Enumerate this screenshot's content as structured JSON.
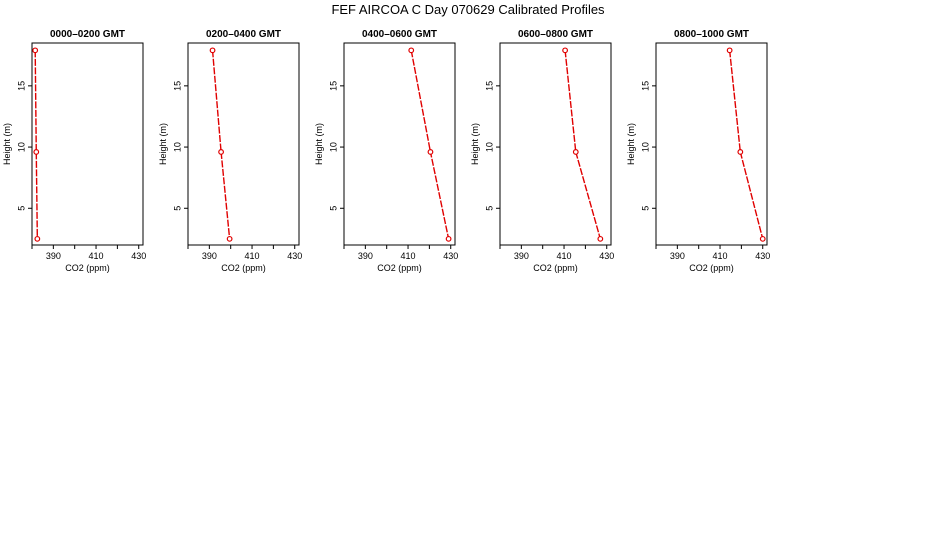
{
  "title": "FEF AIRCOA C  Day 070629  Calibrated Profiles",
  "chart_data": [
    {
      "type": "line",
      "title": "0000–0200 GMT",
      "xlabel": "CO2 (ppm)",
      "ylabel": "Height (m)",
      "xlim": [
        380,
        432
      ],
      "ylim": [
        2,
        18.5
      ],
      "xticks": [
        390,
        410,
        430
      ],
      "yticks": [
        5,
        10,
        15
      ],
      "x": [
        381.5,
        382.0,
        382.5
      ],
      "y": [
        17.9,
        9.6,
        2.5
      ],
      "line_color": "#e00000",
      "grid": false
    },
    {
      "type": "line",
      "title": "0200–0400 GMT",
      "xlabel": "CO2 (ppm)",
      "ylabel": "Height (m)",
      "xlim": [
        380,
        432
      ],
      "ylim": [
        2,
        18.5
      ],
      "xticks": [
        390,
        410,
        430
      ],
      "yticks": [
        5,
        10,
        15
      ],
      "x": [
        391.5,
        395.5,
        399.5
      ],
      "y": [
        17.9,
        9.6,
        2.5
      ],
      "line_color": "#e00000",
      "grid": false
    },
    {
      "type": "line",
      "title": "0400–0600 GMT",
      "xlabel": "CO2 (ppm)",
      "ylabel": "Height (m)",
      "xlim": [
        380,
        432
      ],
      "ylim": [
        2,
        18.5
      ],
      "xticks": [
        390,
        410,
        430
      ],
      "yticks": [
        5,
        10,
        15
      ],
      "x": [
        411.5,
        420.5,
        429.0
      ],
      "y": [
        17.9,
        9.6,
        2.5
      ],
      "line_color": "#e00000",
      "grid": false
    },
    {
      "type": "line",
      "title": "0600–0800 GMT",
      "xlabel": "CO2 (ppm)",
      "ylabel": "Height (m)",
      "xlim": [
        380,
        432
      ],
      "ylim": [
        2,
        18.5
      ],
      "xticks": [
        390,
        410,
        430
      ],
      "yticks": [
        5,
        10,
        15
      ],
      "x": [
        410.5,
        415.5,
        427.0
      ],
      "y": [
        17.9,
        9.6,
        2.5
      ],
      "line_color": "#e00000",
      "grid": false
    },
    {
      "type": "line",
      "title": "0800–1000 GMT",
      "xlabel": "CO2 (ppm)",
      "ylabel": "Height (m)",
      "xlim": [
        380,
        432
      ],
      "ylim": [
        2,
        18.5
      ],
      "xticks": [
        390,
        410,
        430
      ],
      "yticks": [
        5,
        10,
        15
      ],
      "x": [
        414.5,
        419.5,
        430.0
      ],
      "y": [
        17.9,
        9.6,
        2.5
      ],
      "line_color": "#e00000",
      "grid": false
    }
  ]
}
